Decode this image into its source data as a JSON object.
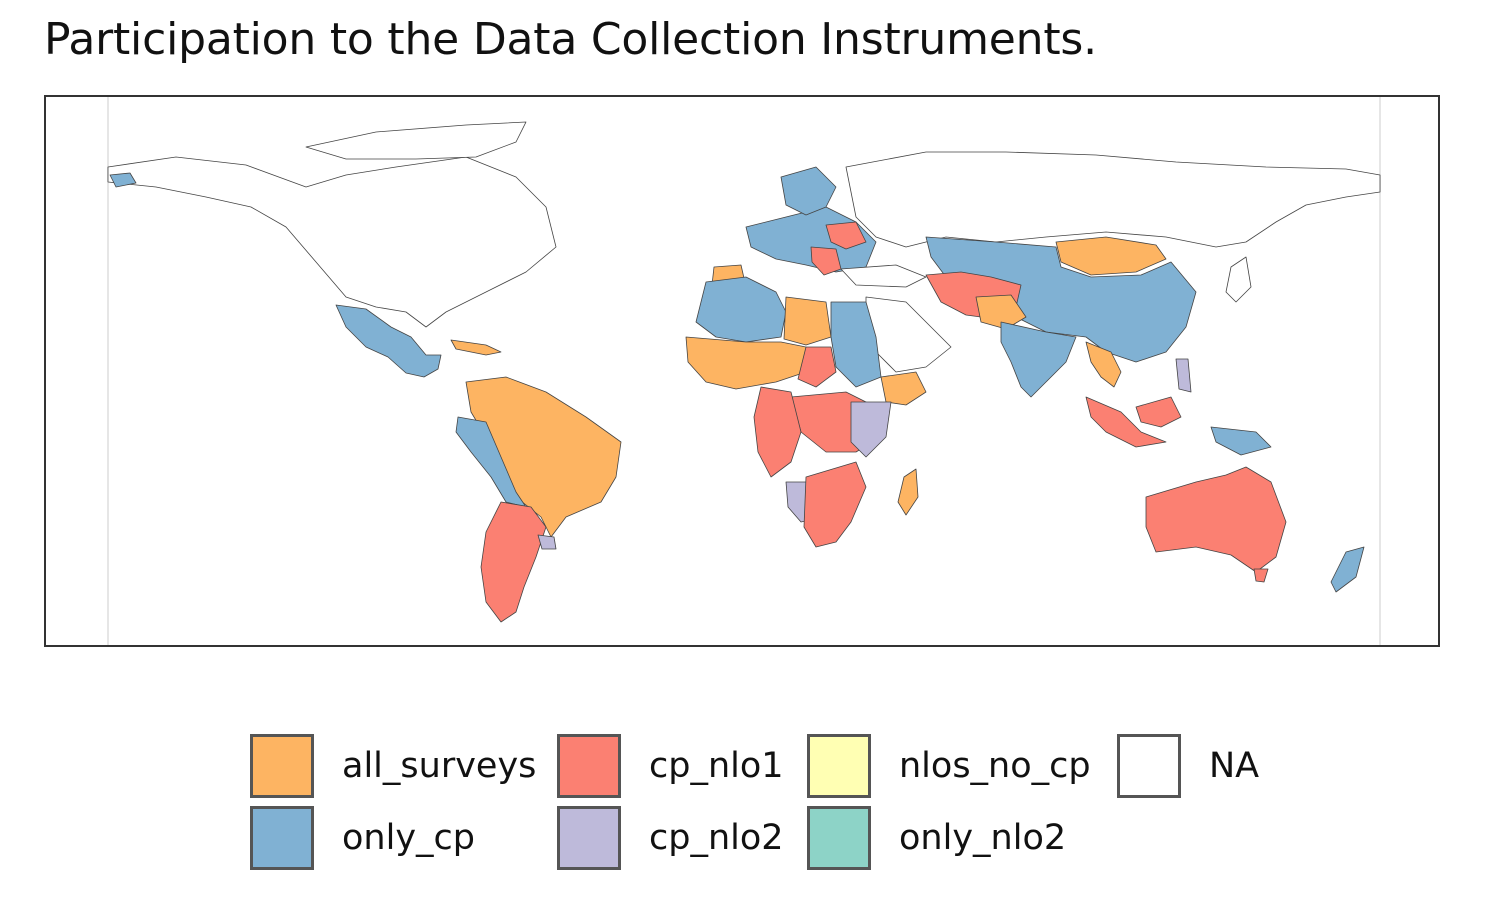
{
  "title": "Participation to the Data Collection Instruments.",
  "legend": {
    "items": [
      {
        "key": "all_surveys",
        "label": "all_surveys",
        "color": "#FDB462"
      },
      {
        "key": "only_cp",
        "label": "only_cp",
        "color": "#80B1D3"
      },
      {
        "key": "cp_nlo1",
        "label": "cp_nlo1",
        "color": "#FB8072"
      },
      {
        "key": "cp_nlo2",
        "label": "cp_nlo2",
        "color": "#BEBADA"
      },
      {
        "key": "nlos_no_cp",
        "label": "nlos_no_cp",
        "color": "#FFFFB3"
      },
      {
        "key": "only_nlo2",
        "label": "only_nlo2",
        "color": "#8DD3C7"
      },
      {
        "key": "NA",
        "label": "NA",
        "color": "#FFFFFF"
      }
    ]
  },
  "map": {
    "border_color": "#444444",
    "regions": [
      {
        "name": "north-america",
        "category": "NA"
      },
      {
        "name": "greenland",
        "category": "NA"
      },
      {
        "name": "mexico-central-america",
        "category": "only_cp"
      },
      {
        "name": "south-america",
        "category": "all_surveys"
      },
      {
        "name": "colombia-peru-bolivia",
        "category": "only_cp"
      },
      {
        "name": "argentina-chile",
        "category": "cp_nlo1"
      },
      {
        "name": "uruguay",
        "category": "cp_nlo2"
      },
      {
        "name": "russia-northern-asia",
        "category": "only_cp"
      },
      {
        "name": "europe",
        "category": "only_cp"
      },
      {
        "name": "mongolia",
        "category": "all_surveys"
      },
      {
        "name": "china",
        "category": "only_cp"
      },
      {
        "name": "north-africa-west",
        "category": "only_cp"
      },
      {
        "name": "libya",
        "category": "all_surveys"
      },
      {
        "name": "egypt-sudan",
        "category": "only_cp"
      },
      {
        "name": "west-africa",
        "category": "all_surveys"
      },
      {
        "name": "central-africa",
        "category": "cp_nlo1"
      },
      {
        "name": "east-africa",
        "category": "cp_nlo2"
      },
      {
        "name": "southern-africa",
        "category": "cp_nlo1"
      },
      {
        "name": "madagascar",
        "category": "all_surveys"
      },
      {
        "name": "arabian-peninsula",
        "category": "NA"
      },
      {
        "name": "iran-afghanistan",
        "category": "cp_nlo1"
      },
      {
        "name": "india",
        "category": "only_cp"
      },
      {
        "name": "southeast-asia",
        "category": "all_surveys"
      },
      {
        "name": "indonesia",
        "category": "cp_nlo1"
      },
      {
        "name": "australia",
        "category": "cp_nlo1"
      },
      {
        "name": "new-zealand",
        "category": "only_cp"
      },
      {
        "name": "japan",
        "category": "NA"
      }
    ]
  }
}
